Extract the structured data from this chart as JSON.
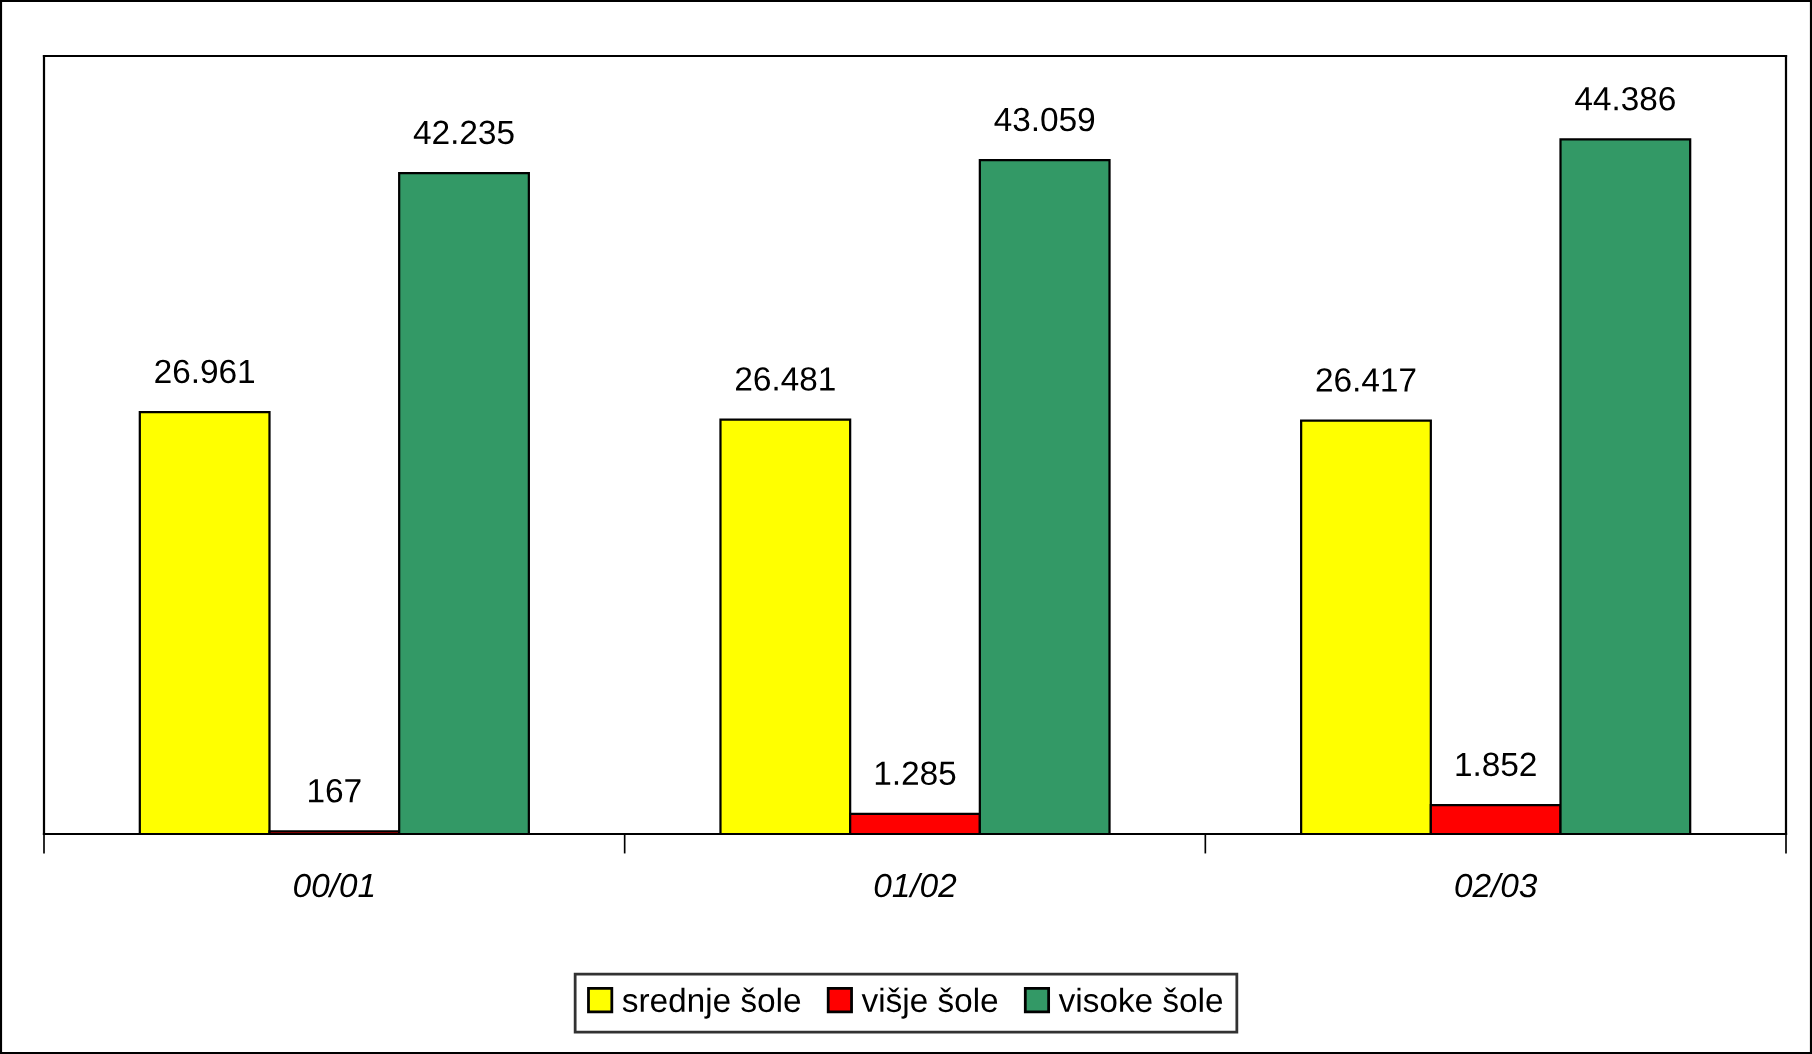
{
  "chart_data": {
    "type": "bar",
    "categories": [
      "00/01",
      "01/02",
      "02/03"
    ],
    "series": [
      {
        "name": "srednje šole",
        "color": "#ffff00",
        "values": [
          26961,
          26481,
          26417
        ],
        "value_labels": [
          "26.961",
          "26.481",
          "26.417"
        ]
      },
      {
        "name": "višje šole",
        "color": "#ff0000",
        "values": [
          167,
          1285,
          1852
        ],
        "value_labels": [
          "167",
          "1.285",
          "1.852"
        ]
      },
      {
        "name": "visoke šole",
        "color": "#339966",
        "values": [
          42235,
          43059,
          44386
        ],
        "value_labels": [
          "42.235",
          "43.059",
          "44.386"
        ]
      }
    ],
    "legend": "bottom"
  }
}
